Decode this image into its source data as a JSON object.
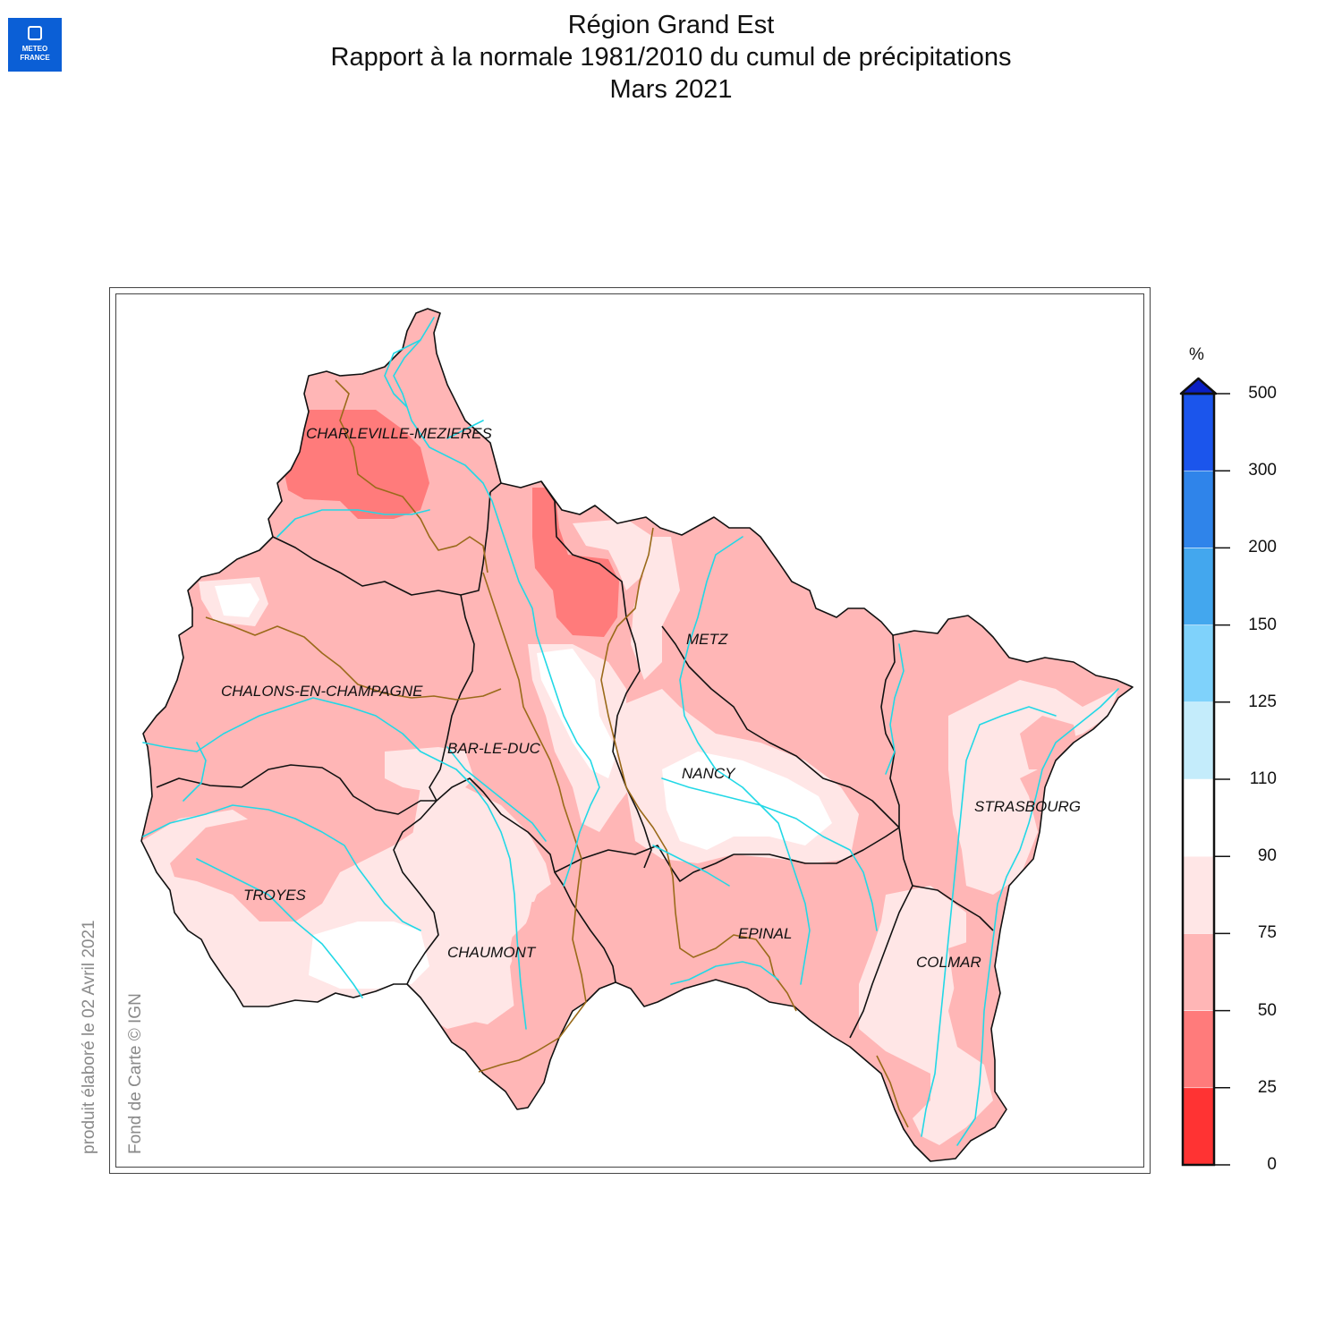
{
  "logo": {
    "line1": "METEO",
    "line2": "FRANCE"
  },
  "header": {
    "title": "Région Grand Est",
    "subtitle": "Rapport à la normale 1981/2010 du cumul de précipitations",
    "period": "Mars 2021"
  },
  "credits": {
    "produced": "produit élaboré le 02 Avril 2021",
    "basemap": "Fond de Carte © IGN"
  },
  "legend": {
    "unit": "%",
    "ticks": [
      "0",
      "25",
      "50",
      "75",
      "90",
      "110",
      "125",
      "150",
      "200",
      "300",
      "500"
    ],
    "colors": [
      "#ff3333",
      "#ff7b7b",
      "#ffb6b6",
      "#ffe6e6",
      "#ffffff",
      "#c4ecfb",
      "#7fd2fb",
      "#43a7ee",
      "#2f84ea",
      "#1b55ec"
    ],
    "overflow_color": "#0a1fc4"
  },
  "cities": [
    {
      "name": "CHARLEVILLE-MEZIERES"
    },
    {
      "name": "METZ"
    },
    {
      "name": "CHALONS-EN-CHAMPAGNE"
    },
    {
      "name": "BAR-LE-DUC"
    },
    {
      "name": "NANCY"
    },
    {
      "name": "STRASBOURG"
    },
    {
      "name": "TROYES"
    },
    {
      "name": "EPINAL"
    },
    {
      "name": "CHAUMONT"
    },
    {
      "name": "COLMAR"
    }
  ],
  "map_colors": {
    "ratio_25_50": "#ff7b7b",
    "ratio_50_75": "#ffb6b6",
    "ratio_75_90": "#ffe6e6",
    "ratio_90_110": "#ffffff",
    "rivers": "#22d8e6",
    "basin_limits": "#9a6a1a",
    "departments": "#111111"
  }
}
